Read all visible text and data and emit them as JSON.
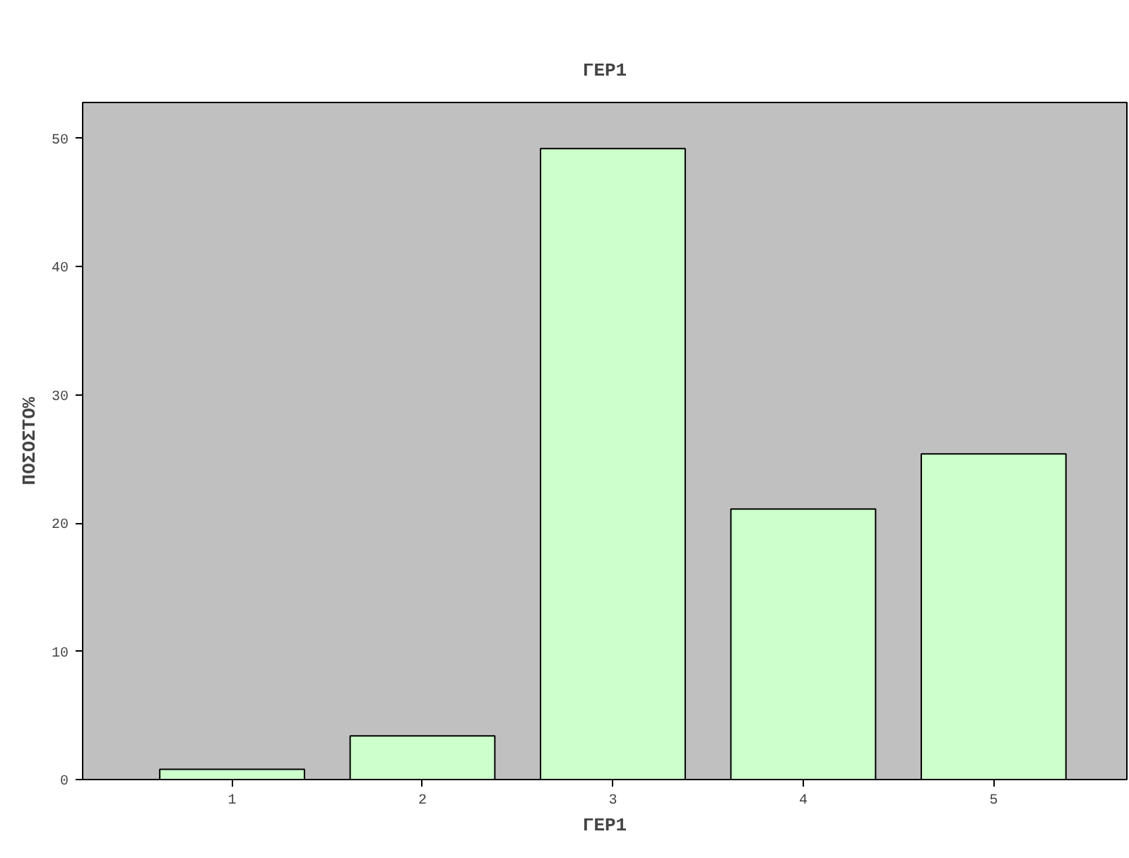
{
  "chart_data": {
    "type": "bar",
    "title": "ΓΕΡ1",
    "xlabel": "ΓΕΡ1",
    "ylabel": "ΠΟΣΟΣΤΟ%",
    "categories": [
      "1",
      "2",
      "3",
      "4",
      "5"
    ],
    "values": [
      0.8,
      3.4,
      49.2,
      21.1,
      25.4
    ],
    "color": "#ccffcc",
    "ylim": [
      0,
      52.8
    ],
    "yticks": [
      0,
      10,
      20,
      30,
      40,
      50
    ],
    "grid": false
  }
}
